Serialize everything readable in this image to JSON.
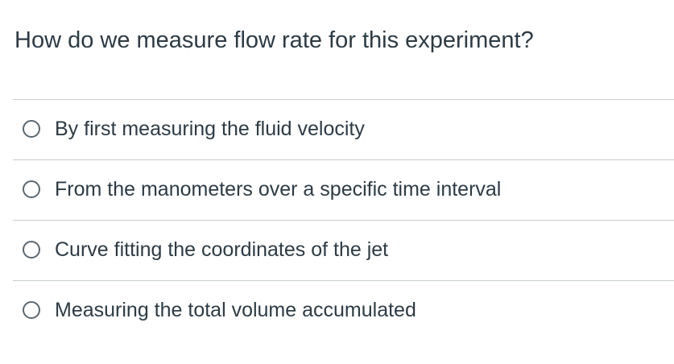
{
  "question": {
    "text": "How do we measure flow rate for this experiment?"
  },
  "answers": [
    {
      "label": "By first measuring the fluid velocity",
      "selected": false
    },
    {
      "label": "From the manometers over a specific time interval",
      "selected": false
    },
    {
      "label": "Curve fitting the coordinates of the jet",
      "selected": false
    },
    {
      "label": "Measuring the total volume accumulated",
      "selected": false
    }
  ]
}
